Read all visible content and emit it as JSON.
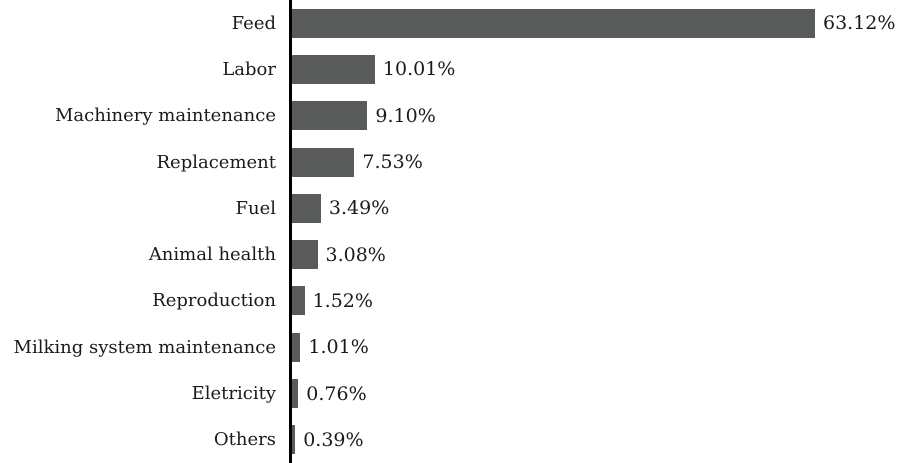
{
  "chart_data": {
    "type": "bar",
    "orientation": "horizontal",
    "categories": [
      "Feed",
      "Labor",
      "Machinery maintenance",
      "Replacement",
      "Fuel",
      "Animal health",
      "Reproduction",
      "Milking system maintenance",
      "Eletricity",
      "Others"
    ],
    "values": [
      63.12,
      10.01,
      9.1,
      7.53,
      3.49,
      3.08,
      1.52,
      1.01,
      0.76,
      0.39
    ],
    "value_labels": [
      "63.12%",
      "10.01%",
      "9.10%",
      "7.53%",
      "3.49%",
      "3.08%",
      "1.52%",
      "1.01%",
      "0.76%",
      "0.39%"
    ],
    "title": "",
    "xlabel": "",
    "ylabel": "",
    "xlim": [
      0,
      63.12
    ],
    "grid": false,
    "legend": false,
    "bar_color": "#595a5a",
    "axis_color": "#000000",
    "text_color": "#1a1a1a"
  }
}
